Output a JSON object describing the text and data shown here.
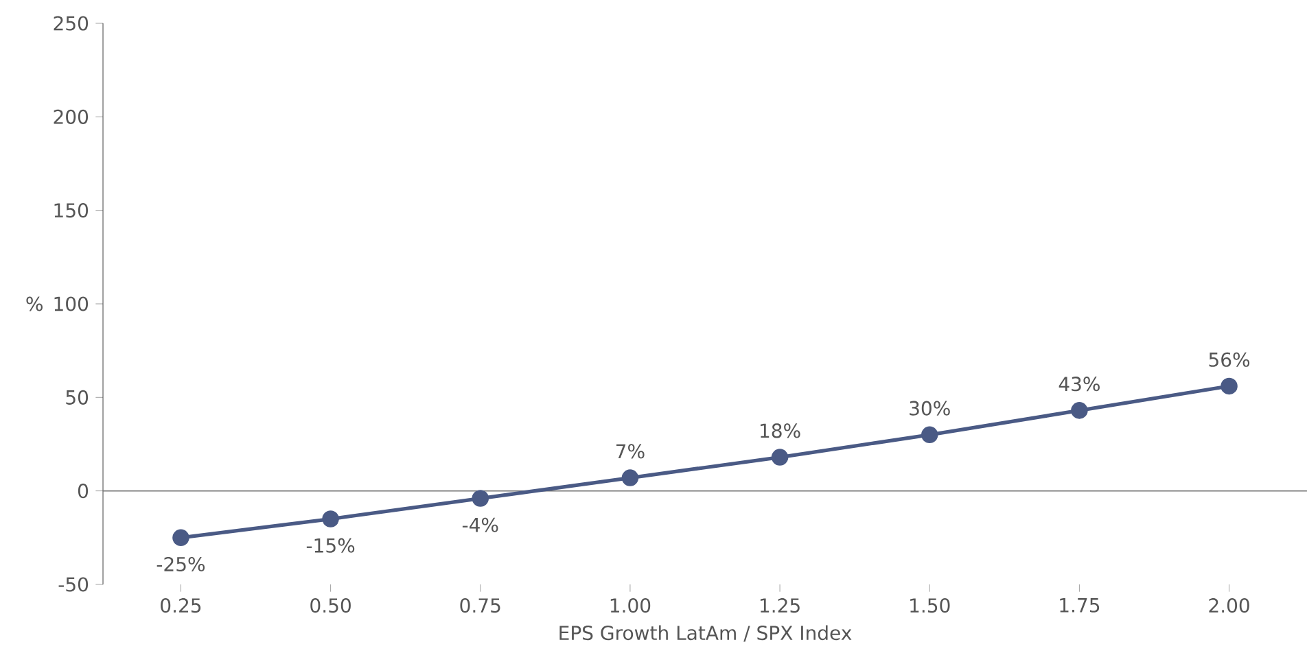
{
  "chart_data": {
    "type": "line",
    "xlabel": "EPS Growth LatAm / SPX Index",
    "ylabel": "%",
    "x": [
      0.25,
      0.5,
      0.75,
      1.0,
      1.25,
      1.5,
      1.75,
      2.0
    ],
    "values": [
      -25,
      -15,
      -4,
      7,
      18,
      30,
      43,
      56
    ],
    "value_labels": [
      "-25%",
      "-15%",
      "-4%",
      "7%",
      "18%",
      "30%",
      "43%",
      "56%"
    ],
    "color": "#4a5a85",
    "marker": "circle",
    "xlim": [
      0.12,
      2.13
    ],
    "ylim": [
      -50,
      250
    ],
    "xticks": [
      {
        "value": 0.25,
        "label": "0.25"
      },
      {
        "value": 0.5,
        "label": "0.50"
      },
      {
        "value": 0.75,
        "label": "0.75"
      },
      {
        "value": 1.0,
        "label": "1.00"
      },
      {
        "value": 1.25,
        "label": "1.25"
      },
      {
        "value": 1.5,
        "label": "1.50"
      },
      {
        "value": 1.75,
        "label": "1.75"
      },
      {
        "value": 2.0,
        "label": "2.00"
      }
    ],
    "yticks": [
      -50,
      0,
      50,
      100,
      150,
      200,
      250
    ],
    "ref_lines": [
      {
        "axis": "y",
        "value": 0
      }
    ]
  }
}
